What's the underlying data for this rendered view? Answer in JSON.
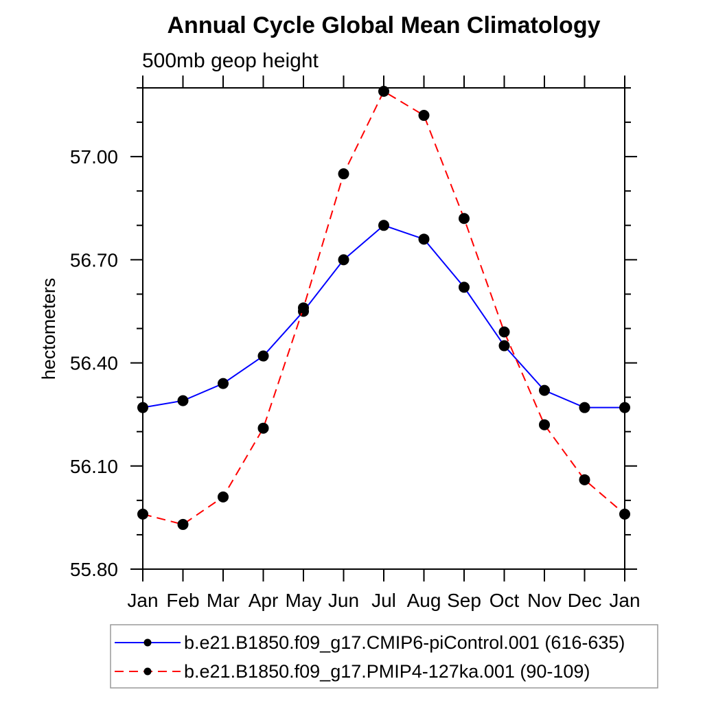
{
  "page": {
    "background": "#ffffff"
  },
  "chart_data": {
    "type": "line",
    "title": "Annual Cycle Global Mean Climatology",
    "subtitle": "500mb geop height",
    "xlabel": "",
    "ylabel": "hectometers",
    "categories": [
      "Jan",
      "Feb",
      "Mar",
      "Apr",
      "May",
      "Jun",
      "Jul",
      "Aug",
      "Sep",
      "Oct",
      "Nov",
      "Dec",
      "Jan"
    ],
    "series": [
      {
        "name": "b.e21.B1850.f09_g17.CMIP6-piControl.001 (616-635)",
        "color": "#0000ff",
        "line_style": "solid",
        "marker": "filled-circle",
        "marker_color": "#000000",
        "values": [
          56.27,
          56.29,
          56.34,
          56.42,
          56.55,
          56.7,
          56.8,
          56.76,
          56.62,
          56.45,
          56.32,
          56.27,
          56.27
        ]
      },
      {
        "name": "b.e21.B1850.f09_g17.PMIP4-127ka.001 (90-109)",
        "color": "#ff0000",
        "line_style": "dashed",
        "marker": "filled-circle",
        "marker_color": "#000000",
        "values": [
          55.96,
          55.93,
          56.01,
          56.21,
          56.56,
          56.95,
          57.19,
          57.12,
          56.82,
          56.49,
          56.22,
          56.06,
          55.96
        ]
      }
    ],
    "ylim": [
      55.8,
      57.2
    ],
    "yticks_major": [
      55.8,
      56.1,
      56.4,
      56.7,
      57.0
    ],
    "ytick_labels": [
      "55.80",
      "56.10",
      "56.40",
      "56.70",
      "57.00"
    ],
    "ytick_minor_step": 0.1,
    "grid": false,
    "legend_position": "bottom",
    "axis_color": "#000000",
    "text_color": "#000000",
    "legend_border_color": "#999999"
  }
}
